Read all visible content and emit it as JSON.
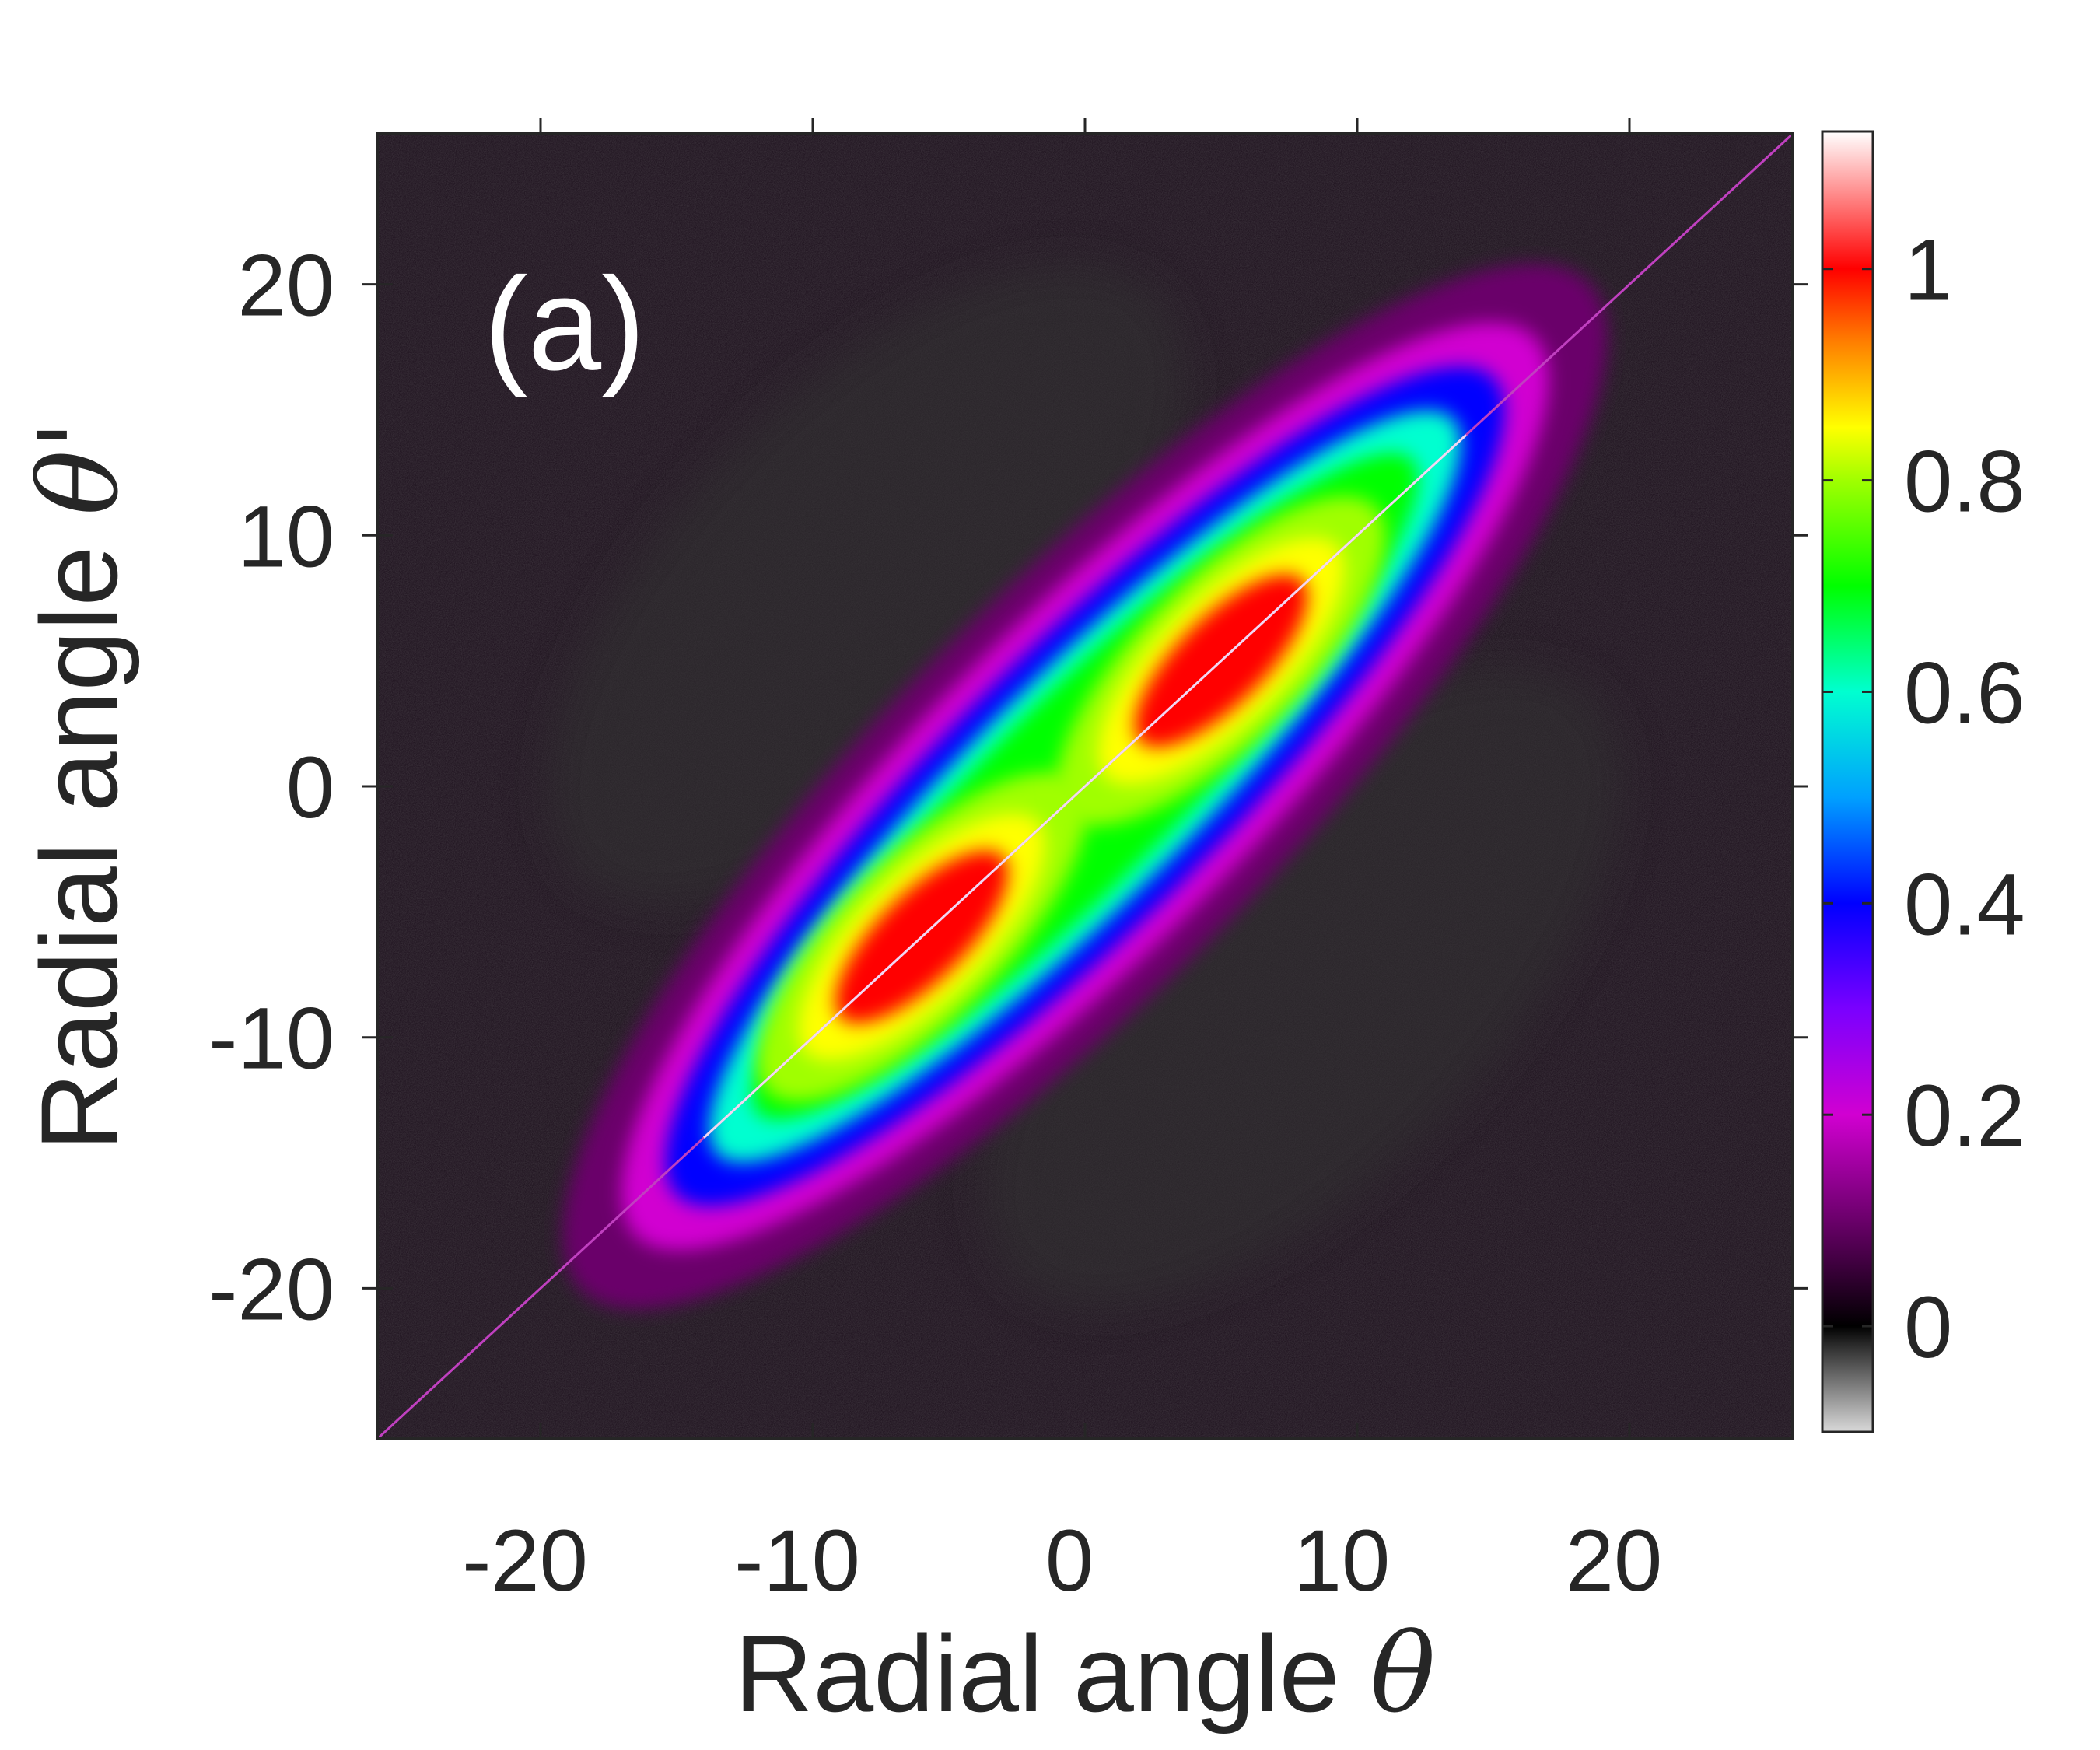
{
  "chart_data": {
    "type": "heatmap",
    "title": "",
    "panel_label": "(a)",
    "xlabel": "Radial angle ",
    "xlabel_symbol": "θ",
    "ylabel": "Radial angle ",
    "ylabel_symbol": "θ'",
    "xlim": [
      -26,
      26
    ],
    "ylim": [
      -26,
      26
    ],
    "xticks": [
      -20,
      -10,
      0,
      10,
      20
    ],
    "yticks": [
      -20,
      -10,
      0,
      10,
      20
    ],
    "xtick_labels": [
      "-20",
      "-10",
      "0",
      "10",
      "20"
    ],
    "ytick_labels": [
      "-20",
      "-10",
      "0",
      "10",
      "20"
    ],
    "colorbar": {
      "range": [
        -0.1,
        1.13
      ],
      "ticks": [
        0,
        0.2,
        0.4,
        0.6,
        0.8,
        1
      ],
      "tick_labels": [
        "0",
        "0.2",
        "0.4",
        "0.6",
        "0.8",
        "1"
      ],
      "colormap_stops": [
        {
          "value": -0.1,
          "color": "#d9d9d9"
        },
        {
          "value": -0.02,
          "color": "#303030"
        },
        {
          "value": 0.0,
          "color": "#000000"
        },
        {
          "value": 0.1,
          "color": "#6a006a"
        },
        {
          "value": 0.2,
          "color": "#d100d1"
        },
        {
          "value": 0.3,
          "color": "#7a00ff"
        },
        {
          "value": 0.4,
          "color": "#0000ff"
        },
        {
          "value": 0.5,
          "color": "#00a0ff"
        },
        {
          "value": 0.6,
          "color": "#00ffd0"
        },
        {
          "value": 0.7,
          "color": "#00ff00"
        },
        {
          "value": 0.8,
          "color": "#a0ff00"
        },
        {
          "value": 0.85,
          "color": "#ffff00"
        },
        {
          "value": 0.93,
          "color": "#ff8000"
        },
        {
          "value": 1.0,
          "color": "#ff0000"
        },
        {
          "value": 1.13,
          "color": "#ffffff"
        }
      ]
    },
    "structure": {
      "description_key": "correlation heatmap concentrated along the diagonal theta = theta'",
      "diagonal_value": 1.0,
      "off_diagonal_background": 0.0,
      "lobes": [
        {
          "center": [
            -6,
            -6
          ],
          "value": 1.0
        },
        {
          "center": [
            5,
            5
          ],
          "value": 1.0
        }
      ],
      "band_extent": [
        -14,
        14
      ]
    },
    "grid": false,
    "legend": "none"
  }
}
